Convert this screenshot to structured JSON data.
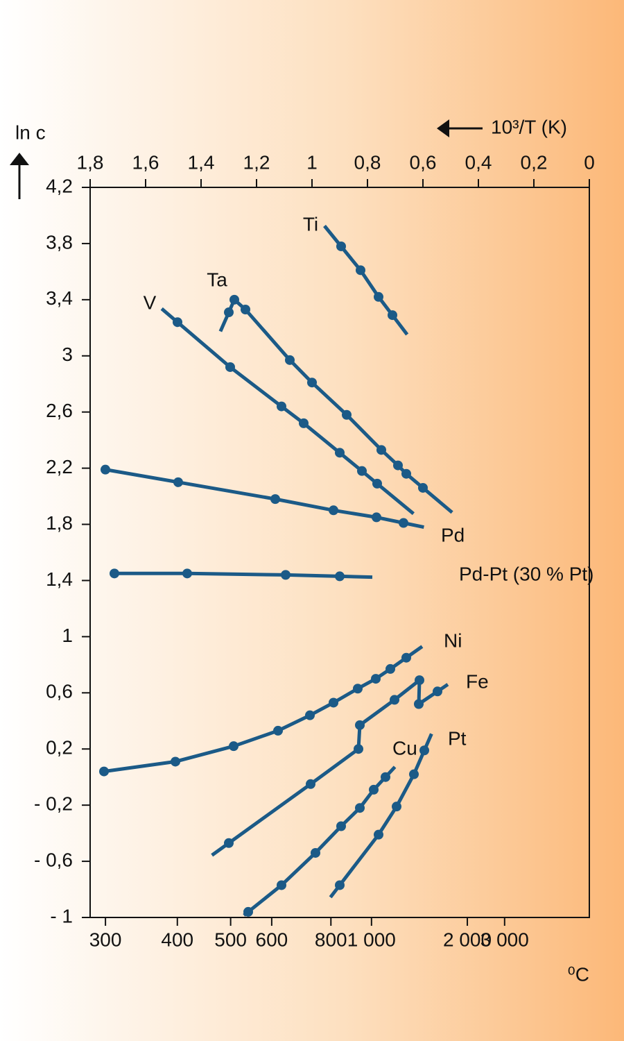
{
  "chart_data": {
    "type": "line",
    "y_label": "ln c",
    "x2_label": "10³/T (K)",
    "xlabel": "⁰C",
    "xlim": [
      1.8,
      0
    ],
    "xticks": [
      {
        "value": 1.8,
        "label": "1,8"
      },
      {
        "value": 1.6,
        "label": "1,6"
      },
      {
        "value": 1.4,
        "label": "1,4"
      },
      {
        "value": 1.2,
        "label": "1,2"
      },
      1,
      {
        "value": 0.8,
        "label": "0,8"
      },
      {
        "value": 0.6,
        "label": "0,6"
      },
      {
        "value": 0.4,
        "label": "0,4"
      },
      {
        "value": 0.2,
        "label": "0,2"
      },
      0
    ],
    "ylim": [
      -1,
      4.2
    ],
    "yticks": [
      {
        "value": 4.2,
        "label": "4,2"
      },
      {
        "value": 3.8,
        "label": "3,8"
      },
      {
        "value": 3.4,
        "label": "3,4"
      },
      3,
      {
        "value": 2.6,
        "label": "2,6"
      },
      {
        "value": 2.2,
        "label": "2,2"
      },
      {
        "value": 1.8,
        "label": "1,8"
      },
      {
        "value": 1.4,
        "label": "1,4"
      },
      1,
      {
        "value": 0.6,
        "label": "0,6"
      },
      {
        "value": 0.2,
        "label": "0,2"
      },
      {
        "value": -0.2,
        "label": "- 0,2"
      },
      {
        "value": -0.6,
        "label": "- 0,6"
      },
      {
        "value": -1,
        "label": "- 1"
      }
    ],
    "celsius_ticks": [
      300,
      400,
      500,
      600,
      800,
      {
        "value": 1000,
        "label": "1 000"
      },
      {
        "value": 2000,
        "label": "2 000"
      },
      {
        "value": 3000,
        "label": "3 000"
      }
    ],
    "series": [
      {
        "name": "Ti",
        "color": "#1b5a87",
        "x": [
          0.895,
          0.825,
          0.76,
          0.71
        ],
        "values": [
          3.78,
          3.61,
          3.42,
          3.29
        ]
      },
      {
        "name": "Ta",
        "color": "#1b5a87",
        "x": [
          1.3,
          1.28,
          1.24,
          1.08,
          1.0,
          0.875,
          0.75,
          0.69,
          0.66,
          0.6
        ],
        "values": [
          3.31,
          3.4,
          3.33,
          2.97,
          2.81,
          2.58,
          2.33,
          2.22,
          2.16,
          2.06
        ]
      },
      {
        "name": "V",
        "color": "#1b5a87",
        "x": [
          1.485,
          1.295,
          1.11,
          1.03,
          0.9,
          0.82,
          0.765
        ],
        "values": [
          3.24,
          2.92,
          2.64,
          2.52,
          2.31,
          2.18,
          2.09
        ]
      },
      {
        "name": "Pd",
        "color": "#1b5a87",
        "x": [
          1.745,
          1.4825,
          1.1325,
          0.9225,
          0.7675,
          0.67
        ],
        "values": [
          2.19,
          2.1,
          1.98,
          1.9,
          1.85,
          1.81
        ]
      },
      {
        "name": "Pd-Pt (30 % Pt)",
        "color": "#1b5a87",
        "x": [
          1.7125,
          1.45,
          1.095,
          0.9
        ],
        "values": [
          1.45,
          1.45,
          1.44,
          1.43
        ]
      },
      {
        "name": "Ni",
        "color": "#1b5a87",
        "x": [
          1.75,
          1.4925,
          1.2825,
          1.1225,
          1.0075,
          0.9225,
          0.835,
          0.77,
          0.7175,
          0.66
        ],
        "values": [
          0.04,
          0.11,
          0.22,
          0.33,
          0.44,
          0.53,
          0.63,
          0.7,
          0.77,
          0.85
        ]
      },
      {
        "name": "Fe",
        "color": "#1b5a87",
        "x": [
          1.3,
          1.005,
          0.8325,
          0.8275,
          0.7025,
          0.6125,
          0.615,
          0.5475
        ],
        "values": [
          -0.47,
          -0.05,
          0.2,
          0.37,
          0.55,
          0.69,
          0.52,
          0.61
        ]
      },
      {
        "name": "Cu",
        "color": "#1b5a87",
        "x": [
          1.23,
          1.11,
          0.9875,
          0.895,
          0.8275,
          0.7775,
          0.735
        ],
        "values": [
          -0.96,
          -0.77,
          -0.54,
          -0.35,
          -0.22,
          -0.09,
          0.0
        ]
      },
      {
        "name": "Pt",
        "color": "#1b5a87",
        "x": [
          0.9,
          0.76,
          0.695,
          0.6325,
          0.595
        ],
        "values": [
          -0.77,
          -0.41,
          -0.21,
          0.02,
          0.19
        ]
      }
    ]
  }
}
